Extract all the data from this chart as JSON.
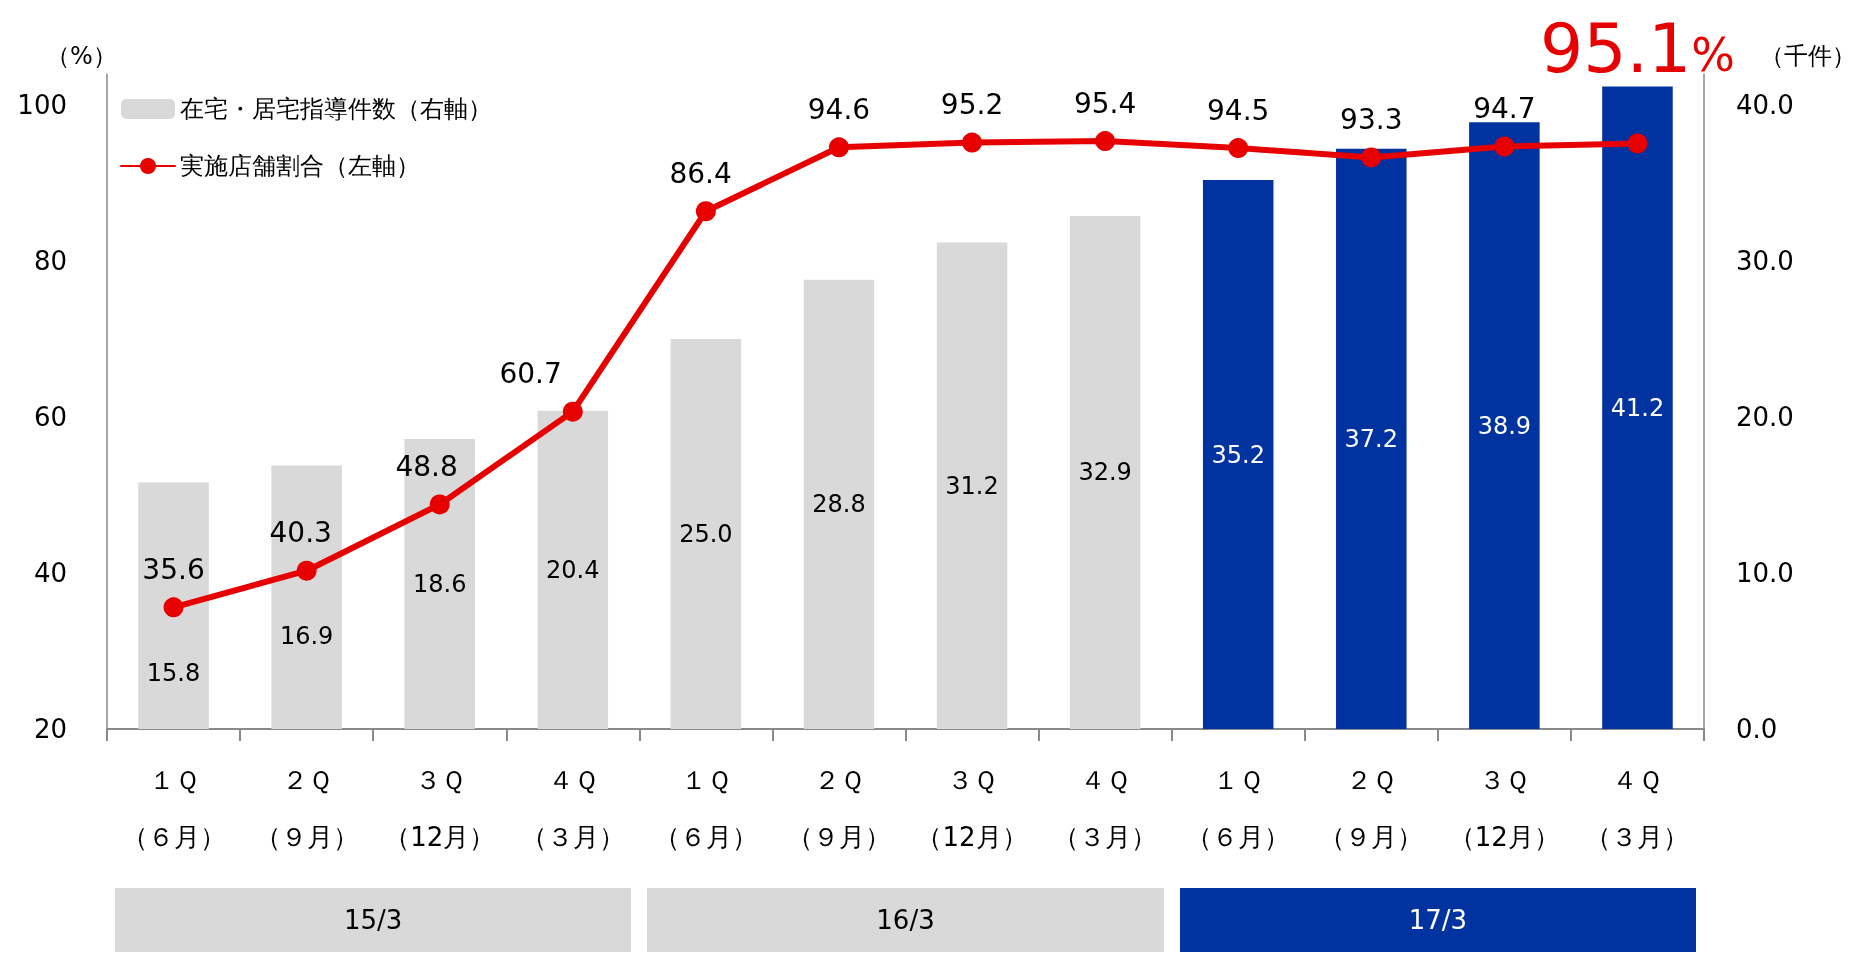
{
  "chart_data": {
    "type": "bar",
    "ylabel": "（%）",
    "y2label": "（千件）",
    "categories": [
      "１Ｑ（６月）",
      "２Ｑ（９月）",
      "３Ｑ（12月）",
      "４Ｑ（３月）",
      "１Ｑ（６月）",
      "２Ｑ（９月）",
      "３Ｑ（12月）",
      "４Ｑ（３月）",
      "１Ｑ（６月）",
      "２Ｑ（９月）",
      "３Ｑ（12月）",
      "４Ｑ（３月）"
    ],
    "series": [
      {
        "name": "在宅・居宅指導件数（右軸）",
        "axis": "y2",
        "colors": [
          "#d9d9d9",
          "#d9d9d9",
          "#d9d9d9",
          "#d9d9d9",
          "#d9d9d9",
          "#d9d9d9",
          "#d9d9d9",
          "#d9d9d9",
          "#0033a0",
          "#0033a0",
          "#0033a0",
          "#0033a0"
        ],
        "values": [
          15.8,
          16.9,
          18.6,
          20.4,
          25.0,
          28.8,
          31.2,
          32.9,
          35.2,
          37.2,
          38.9,
          41.2
        ],
        "value_labels": [
          "15.8",
          "16.9",
          "18.6",
          "20.4",
          "25.0",
          "28.8",
          "31.2",
          "32.9",
          "35.2",
          "37.2",
          "38.9",
          "41.2"
        ]
      },
      {
        "name": "実施店舗割合（左軸）",
        "type": "line",
        "axis": "y",
        "color": "#e60000",
        "values": [
          35.6,
          40.3,
          48.8,
          60.7,
          86.4,
          94.6,
          95.2,
          95.4,
          94.5,
          93.3,
          94.7,
          95.1
        ],
        "value_labels": [
          "35.6",
          "40.3",
          "48.8",
          "60.7",
          "86.4",
          "94.6",
          "95.2",
          "95.4",
          "94.5",
          "93.3",
          "94.7",
          "95.1%"
        ]
      }
    ],
    "ylim": [
      20,
      104
    ],
    "yticks": [
      20,
      40,
      60,
      80,
      100
    ],
    "y2lim": [
      0,
      42
    ],
    "y2ticks": [
      {
        "value": 0,
        "label": "0.0"
      },
      {
        "value": 10,
        "label": "10.0"
      },
      {
        "value": 20,
        "label": "20.0"
      },
      {
        "value": 30,
        "label": "30.0"
      },
      {
        "value": 40,
        "label": "40.0"
      }
    ],
    "annotations": [
      "15/3",
      "16/3",
      "17/3"
    ],
    "legend": "top left",
    "grid": false,
    "marker": "circle",
    "line_style": "solid"
  }
}
